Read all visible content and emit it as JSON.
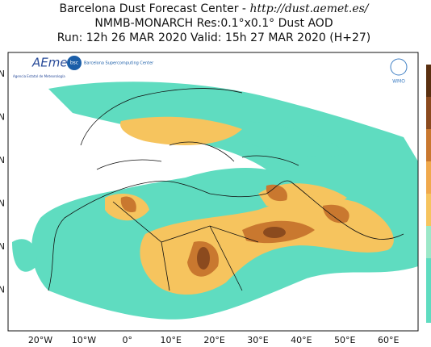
{
  "header": {
    "title": "Barcelona Dust Forecast Center - ",
    "url": "http://dust.aemet.es/",
    "model_line": "NMMB-MONARCH   Res:0.1°x0.1°   Dust AOD",
    "run_line": "Run: 12h 26 MAR 2020   Valid: 15h 27 MAR 2020 (H+27)"
  },
  "map": {
    "lon_labels": [
      "20°W",
      "10°W",
      "0°",
      "10°E",
      "20°E",
      "30°E",
      "40°E",
      "50°E",
      "60°E"
    ],
    "lat_labels": [
      "N",
      "N",
      "N",
      "N",
      "N",
      "N"
    ]
  },
  "logos": {
    "aemet": "AEmet",
    "aemet_sub": "Agencia Estatal de Meteorología",
    "bsc": "bsc",
    "bsc_text": "Barcelona Supercomputing Center",
    "wmo": "WMO"
  }
}
